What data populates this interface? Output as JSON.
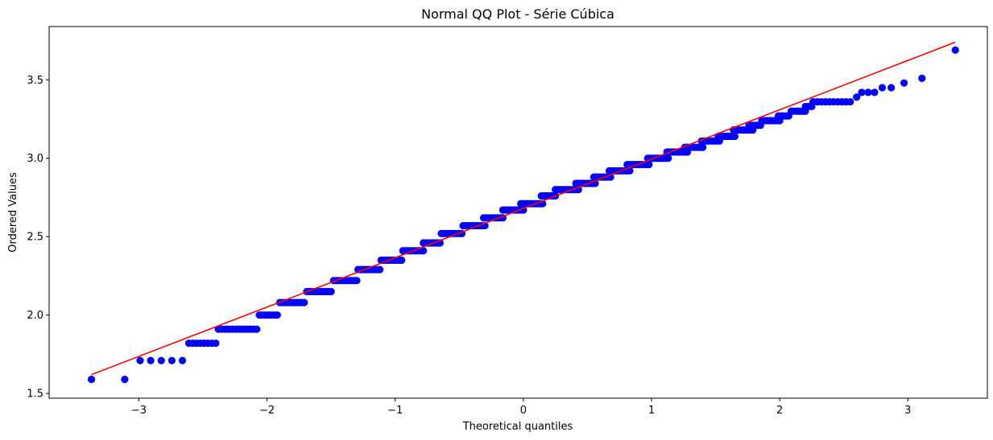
{
  "chart_data": {
    "type": "scatter",
    "title": "Normal QQ Plot - Série Cúbica",
    "xlabel": "Theoretical quantiles",
    "ylabel": "Ordered Values",
    "xlim": [
      -3.7,
      3.62
    ],
    "ylim": [
      1.47,
      3.84
    ],
    "xticks": [
      -3,
      -2,
      -1,
      0,
      1,
      2,
      3
    ],
    "xtick_labels": [
      "−3",
      "−2",
      "−1",
      "0",
      "1",
      "2",
      "3"
    ],
    "yticks": [
      1.5,
      2.0,
      2.5,
      3.0,
      3.5
    ],
    "ytick_labels": [
      "1.5",
      "2.0",
      "2.5",
      "3.0",
      "3.5"
    ],
    "grid": false,
    "colors": {
      "points": "#0000ff",
      "fit_line": "#ff0000"
    },
    "fit_line": {
      "x": [
        -3.37,
        3.37
      ],
      "y": [
        1.62,
        3.74
      ]
    },
    "steps": [
      {
        "y": 1.59,
        "x_from": -3.37,
        "x_to": -3.37,
        "n": 1
      },
      {
        "y": 1.59,
        "x_from": -3.11,
        "x_to": -3.11,
        "n": 1
      },
      {
        "y": 1.71,
        "x_from": -2.99,
        "x_to": -2.66,
        "n": 5
      },
      {
        "y": 1.82,
        "x_from": -2.61,
        "x_to": -2.4,
        "n": 8
      },
      {
        "y": 1.91,
        "x_from": -2.38,
        "x_to": -2.08,
        "n": 12
      },
      {
        "y": 2.0,
        "x_from": -2.06,
        "x_to": -1.92,
        "n": 8
      },
      {
        "y": 2.08,
        "x_from": -1.9,
        "x_to": -1.71,
        "n": 10
      },
      {
        "y": 2.15,
        "x_from": -1.69,
        "x_to": -1.5,
        "n": 10
      },
      {
        "y": 2.22,
        "x_from": -1.48,
        "x_to": -1.3,
        "n": 10
      },
      {
        "y": 2.29,
        "x_from": -1.29,
        "x_to": -1.12,
        "n": 10
      },
      {
        "y": 2.35,
        "x_from": -1.11,
        "x_to": -0.95,
        "n": 10
      },
      {
        "y": 2.41,
        "x_from": -0.94,
        "x_to": -0.78,
        "n": 10
      },
      {
        "y": 2.46,
        "x_from": -0.78,
        "x_to": -0.65,
        "n": 8
      },
      {
        "y": 2.52,
        "x_from": -0.64,
        "x_to": -0.48,
        "n": 10
      },
      {
        "y": 2.57,
        "x_from": -0.47,
        "x_to": -0.3,
        "n": 10
      },
      {
        "y": 2.62,
        "x_from": -0.31,
        "x_to": -0.16,
        "n": 9
      },
      {
        "y": 2.67,
        "x_from": -0.16,
        "x_to": 0.0,
        "n": 10
      },
      {
        "y": 2.71,
        "x_from": -0.02,
        "x_to": 0.15,
        "n": 10
      },
      {
        "y": 2.76,
        "x_from": 0.14,
        "x_to": 0.25,
        "n": 7
      },
      {
        "y": 2.8,
        "x_from": 0.25,
        "x_to": 0.43,
        "n": 10
      },
      {
        "y": 2.84,
        "x_from": 0.41,
        "x_to": 0.56,
        "n": 9
      },
      {
        "y": 2.88,
        "x_from": 0.55,
        "x_to": 0.68,
        "n": 8
      },
      {
        "y": 2.92,
        "x_from": 0.67,
        "x_to": 0.83,
        "n": 9
      },
      {
        "y": 2.96,
        "x_from": 0.81,
        "x_to": 0.98,
        "n": 10
      },
      {
        "y": 3.0,
        "x_from": 0.97,
        "x_to": 1.13,
        "n": 10
      },
      {
        "y": 3.04,
        "x_from": 1.12,
        "x_to": 1.28,
        "n": 10
      },
      {
        "y": 3.07,
        "x_from": 1.26,
        "x_to": 1.4,
        "n": 8
      },
      {
        "y": 3.11,
        "x_from": 1.39,
        "x_to": 1.53,
        "n": 9
      },
      {
        "y": 3.14,
        "x_from": 1.52,
        "x_to": 1.65,
        "n": 8
      },
      {
        "y": 3.18,
        "x_from": 1.64,
        "x_to": 1.79,
        "n": 9
      },
      {
        "y": 3.21,
        "x_from": 1.76,
        "x_to": 1.85,
        "n": 6
      },
      {
        "y": 3.24,
        "x_from": 1.86,
        "x_to": 2.0,
        "n": 8
      },
      {
        "y": 3.27,
        "x_from": 1.99,
        "x_to": 2.07,
        "n": 5
      },
      {
        "y": 3.3,
        "x_from": 2.09,
        "x_to": 2.2,
        "n": 6
      },
      {
        "y": 3.33,
        "x_from": 2.2,
        "x_to": 2.25,
        "n": 3
      },
      {
        "y": 3.36,
        "x_from": 2.26,
        "x_to": 2.55,
        "n": 10
      },
      {
        "y": 3.39,
        "x_from": 2.6,
        "x_to": 2.6,
        "n": 1
      },
      {
        "y": 3.42,
        "x_from": 2.64,
        "x_to": 2.74,
        "n": 3
      },
      {
        "y": 3.45,
        "x_from": 2.8,
        "x_to": 2.87,
        "n": 2
      },
      {
        "y": 3.48,
        "x_from": 2.97,
        "x_to": 2.97,
        "n": 1
      },
      {
        "y": 3.51,
        "x_from": 3.11,
        "x_to": 3.11,
        "n": 1
      },
      {
        "y": 3.69,
        "x_from": 3.37,
        "x_to": 3.37,
        "n": 1
      }
    ]
  }
}
